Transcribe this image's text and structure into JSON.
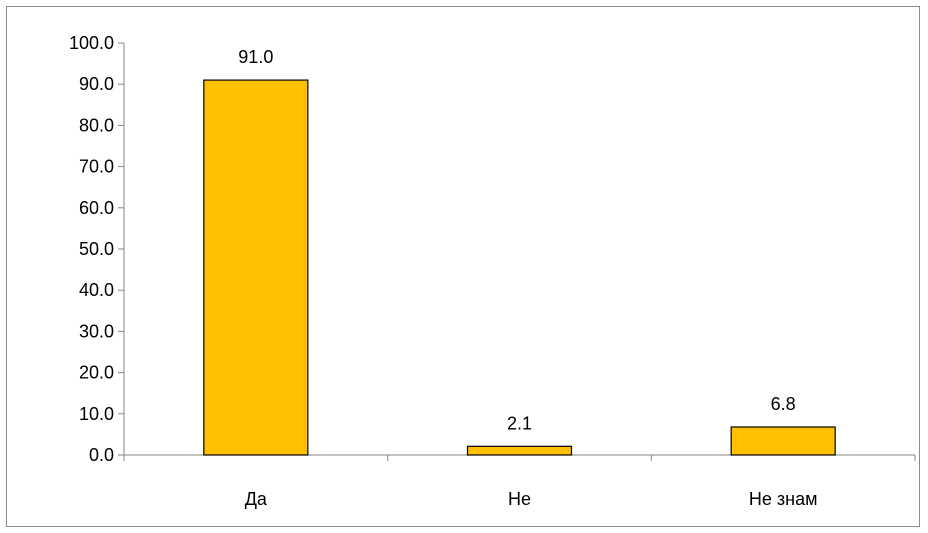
{
  "chart_data": {
    "type": "bar",
    "categories": [
      "Да",
      "Не",
      "Не знам"
    ],
    "values": [
      91.0,
      2.1,
      6.8
    ],
    "data_labels": [
      "91.0",
      "2.1",
      "6.8"
    ],
    "y_ticks": [
      "0.0",
      "10.0",
      "20.0",
      "30.0",
      "40.0",
      "50.0",
      "60.0",
      "70.0",
      "80.0",
      "90.0",
      "100.0"
    ],
    "ylim": [
      0,
      100
    ],
    "grid": false,
    "legend": "none",
    "bar_color": "#FFC000",
    "bar_stroke": "#000000"
  }
}
